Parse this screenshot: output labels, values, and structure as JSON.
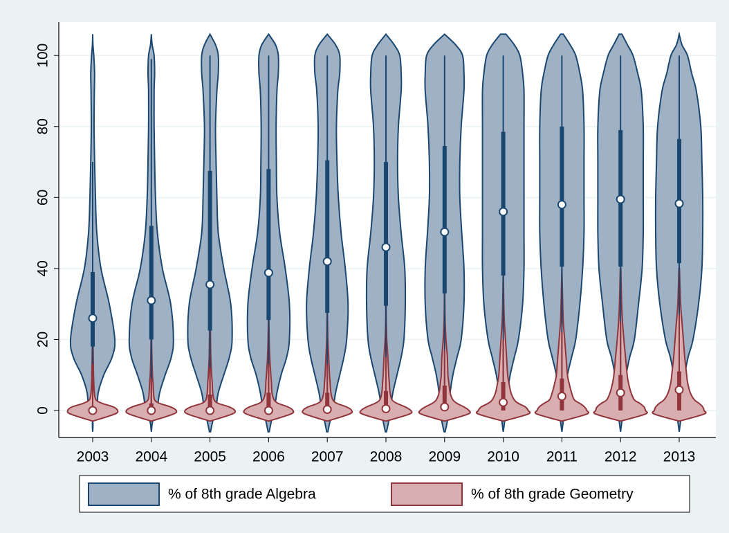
{
  "chart_data": {
    "type": "violin",
    "categories": [
      "2003",
      "2004",
      "2005",
      "2006",
      "2007",
      "2008",
      "2009",
      "2010",
      "2011",
      "2012",
      "2013"
    ],
    "ylim": [
      -7.6,
      109.4
    ],
    "yticks": [
      0,
      20,
      40,
      60,
      80,
      100
    ],
    "grid": true,
    "legend": "bottom",
    "series": [
      {
        "name": "% of 8th grade Algebra",
        "color": "#9fb1c5",
        "stroke": "#1a476f",
        "median": [
          26,
          31,
          35.5,
          38.8,
          42,
          46,
          50.3,
          56,
          58,
          59.5,
          58.3
        ],
        "q1": [
          18,
          20,
          22.5,
          25.5,
          27.5,
          29.5,
          33,
          38,
          40.5,
          40.5,
          41.5
        ],
        "q3": [
          39,
          52,
          67.5,
          68,
          70.5,
          70,
          74.5,
          78.5,
          80,
          79,
          76.5
        ],
        "whisker_low": [
          0,
          0,
          0,
          0,
          0,
          0,
          0,
          0,
          0,
          0,
          0
        ],
        "whisker_high": [
          70,
          99,
          100,
          100,
          100,
          100,
          100,
          100,
          100,
          100,
          100
        ],
        "density_y": [
          -6,
          -3,
          0,
          5,
          10,
          15,
          20,
          30,
          40,
          50,
          60,
          70,
          80,
          90,
          95,
          100,
          103,
          106
        ],
        "density": [
          [
            0,
            0,
            0.15,
            0.2,
            0.4,
            0.7,
            0.8,
            0.6,
            0.3,
            0.15,
            0.1,
            0.07,
            0.05,
            0.06,
            0.07,
            0.04,
            0.01,
            0
          ],
          [
            0,
            0.05,
            0.2,
            0.3,
            0.5,
            0.72,
            0.8,
            0.7,
            0.4,
            0.22,
            0.15,
            0.12,
            0.1,
            0.1,
            0.12,
            0.1,
            0.03,
            0
          ],
          [
            0.02,
            0.1,
            0.2,
            0.3,
            0.5,
            0.7,
            0.8,
            0.75,
            0.5,
            0.3,
            0.25,
            0.22,
            0.2,
            0.25,
            0.3,
            0.3,
            0.2,
            0
          ],
          [
            0.02,
            0.1,
            0.2,
            0.3,
            0.45,
            0.65,
            0.75,
            0.75,
            0.6,
            0.4,
            0.3,
            0.28,
            0.27,
            0.3,
            0.35,
            0.35,
            0.25,
            0
          ],
          [
            0.02,
            0.1,
            0.2,
            0.3,
            0.45,
            0.6,
            0.7,
            0.75,
            0.65,
            0.5,
            0.4,
            0.35,
            0.33,
            0.38,
            0.45,
            0.45,
            0.3,
            0
          ],
          [
            0.02,
            0.1,
            0.15,
            0.25,
            0.4,
            0.55,
            0.65,
            0.7,
            0.68,
            0.55,
            0.45,
            0.42,
            0.45,
            0.55,
            0.55,
            0.5,
            0.3,
            0
          ],
          [
            0.02,
            0.1,
            0.15,
            0.2,
            0.3,
            0.45,
            0.6,
            0.7,
            0.7,
            0.62,
            0.55,
            0.55,
            0.6,
            0.7,
            0.7,
            0.65,
            0.4,
            0
          ],
          [
            0,
            0.05,
            0.1,
            0.15,
            0.25,
            0.4,
            0.55,
            0.7,
            0.75,
            0.75,
            0.75,
            0.75,
            0.75,
            0.75,
            0.7,
            0.6,
            0.4,
            0.1
          ],
          [
            0,
            0.05,
            0.1,
            0.12,
            0.2,
            0.35,
            0.5,
            0.65,
            0.75,
            0.8,
            0.8,
            0.8,
            0.8,
            0.75,
            0.65,
            0.5,
            0.3,
            0.05
          ],
          [
            0,
            0.05,
            0.1,
            0.12,
            0.2,
            0.33,
            0.5,
            0.65,
            0.78,
            0.82,
            0.82,
            0.82,
            0.82,
            0.75,
            0.62,
            0.45,
            0.25,
            0.05
          ],
          [
            0,
            0.05,
            0.1,
            0.12,
            0.2,
            0.32,
            0.5,
            0.7,
            0.82,
            0.85,
            0.85,
            0.82,
            0.78,
            0.62,
            0.45,
            0.3,
            0.1,
            0
          ]
        ]
      },
      {
        "name": "% of 8th grade Geometry",
        "color": "#d9aeb1",
        "stroke": "#90353b",
        "median": [
          0,
          0,
          0,
          0,
          0.3,
          0.5,
          1,
          2.3,
          4,
          5,
          5.8
        ],
        "q1": [
          0,
          0,
          0,
          0,
          0,
          0,
          0,
          0,
          0,
          0,
          0
        ],
        "q3": [
          1,
          2,
          4.5,
          5,
          5,
          5.5,
          7,
          8,
          9,
          10,
          11
        ],
        "whisker_low": [
          0,
          0,
          0,
          0,
          0,
          0,
          0,
          0,
          0,
          0,
          0
        ],
        "whisker_high": [
          13,
          9,
          12,
          13,
          13,
          15,
          17,
          20,
          22,
          25,
          27
        ],
        "density_y": [
          -3,
          -1,
          0,
          1,
          2,
          3,
          5,
          8,
          10,
          15,
          20,
          25,
          30,
          40
        ],
        "density": [
          [
            0,
            0.8,
            0.9,
            0.75,
            0.35,
            0.12,
            0.06,
            0.04,
            0.03,
            0.02,
            0.01,
            0,
            0,
            0
          ],
          [
            0,
            0.8,
            0.9,
            0.7,
            0.3,
            0.12,
            0.08,
            0.06,
            0.04,
            0.02,
            0.01,
            0,
            0,
            0
          ],
          [
            0,
            0.8,
            0.9,
            0.7,
            0.3,
            0.15,
            0.1,
            0.08,
            0.06,
            0.03,
            0.02,
            0.01,
            0,
            0
          ],
          [
            0,
            0.8,
            0.88,
            0.7,
            0.35,
            0.2,
            0.12,
            0.1,
            0.08,
            0.04,
            0.02,
            0.01,
            0,
            0
          ],
          [
            0,
            0.8,
            0.88,
            0.7,
            0.35,
            0.2,
            0.13,
            0.1,
            0.08,
            0.05,
            0.02,
            0.01,
            0,
            0
          ],
          [
            0,
            0.85,
            0.9,
            0.7,
            0.4,
            0.22,
            0.15,
            0.12,
            0.1,
            0.07,
            0.03,
            0.01,
            0.005,
            0
          ],
          [
            0,
            0.85,
            0.88,
            0.7,
            0.45,
            0.3,
            0.2,
            0.15,
            0.12,
            0.1,
            0.05,
            0.02,
            0.01,
            0
          ],
          [
            0,
            0.9,
            0.9,
            0.8,
            0.55,
            0.4,
            0.28,
            0.2,
            0.16,
            0.12,
            0.08,
            0.04,
            0.02,
            0
          ],
          [
            0,
            0.9,
            0.9,
            0.82,
            0.65,
            0.45,
            0.35,
            0.25,
            0.2,
            0.15,
            0.1,
            0.05,
            0.03,
            0
          ],
          [
            0,
            0.9,
            0.9,
            0.85,
            0.7,
            0.5,
            0.38,
            0.28,
            0.24,
            0.18,
            0.12,
            0.07,
            0.04,
            0.01
          ],
          [
            0,
            0.9,
            0.9,
            0.85,
            0.72,
            0.55,
            0.4,
            0.3,
            0.27,
            0.2,
            0.15,
            0.1,
            0.05,
            0.01
          ]
        ]
      }
    ]
  }
}
